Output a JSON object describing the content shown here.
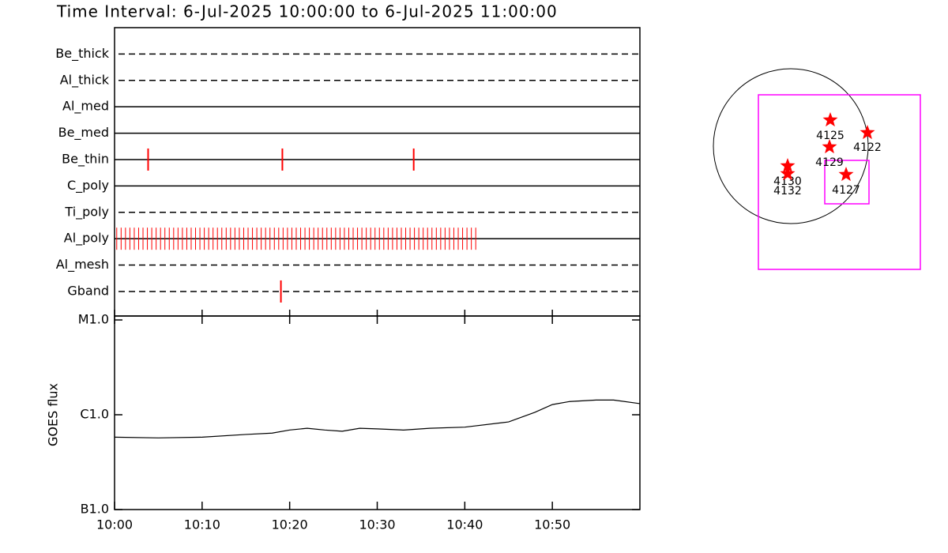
{
  "chart_data": [
    {
      "type": "timeline",
      "title": "Time Interval:  6-Jul-2025 10:00:00 to  6-Jul-2025 11:00:00",
      "categories": [
        "Be_thick",
        "Al_thick",
        "Al_med",
        "Be_med",
        "Be_thin",
        "C_poly",
        "Ti_poly",
        "Al_poly",
        "Al_mesh",
        "Gband"
      ],
      "line_styles": [
        "dashed",
        "dashed",
        "solid",
        "solid",
        "solid",
        "solid",
        "dashed",
        "solid",
        "dashed",
        "dashed"
      ],
      "color": "#ff0000",
      "events": [
        [],
        [],
        [],
        [],
        [
          "10:03:50",
          "10:19:10",
          "10:34:10"
        ],
        [],
        [],
        [
          "10:00:15",
          "10:00:45",
          "10:01:15",
          "10:01:45",
          "10:02:15",
          "10:02:45",
          "10:03:15",
          "10:03:45",
          "10:04:15",
          "10:04:45",
          "10:05:15",
          "10:05:45",
          "10:06:15",
          "10:06:45",
          "10:07:15",
          "10:07:45",
          "10:08:15",
          "10:08:45",
          "10:09:15",
          "10:09:45",
          "10:10:15",
          "10:10:45",
          "10:11:15",
          "10:11:45",
          "10:12:15",
          "10:12:45",
          "10:13:15",
          "10:13:45",
          "10:14:15",
          "10:14:45",
          "10:15:15",
          "10:15:45",
          "10:16:15",
          "10:16:45",
          "10:17:15",
          "10:17:45",
          "10:18:15",
          "10:18:45",
          "10:19:15",
          "10:19:45",
          "10:20:15",
          "10:20:45",
          "10:21:15",
          "10:21:45",
          "10:22:15",
          "10:22:45",
          "10:23:15",
          "10:23:45",
          "10:24:15",
          "10:24:45",
          "10:25:15",
          "10:25:45",
          "10:26:15",
          "10:26:45",
          "10:27:15",
          "10:27:45",
          "10:28:15",
          "10:28:45",
          "10:29:15",
          "10:29:45",
          "10:30:15",
          "10:30:45",
          "10:31:15",
          "10:31:45",
          "10:32:15",
          "10:32:45",
          "10:33:15",
          "10:33:45",
          "10:34:15",
          "10:34:45",
          "10:35:15",
          "10:35:45",
          "10:36:15",
          "10:36:45",
          "10:37:15",
          "10:37:45",
          "10:38:15",
          "10:38:45",
          "10:39:15",
          "10:39:45",
          "10:40:15",
          "10:40:45",
          "10:41:15"
        ],
        [],
        [
          "10:19:00"
        ]
      ]
    },
    {
      "type": "line",
      "ylabel": "GOES flux",
      "log_scale": true,
      "color": "#000000",
      "x": [
        "10:00",
        "10:05",
        "10:10",
        "10:15",
        "10:18",
        "10:20",
        "10:22",
        "10:24",
        "10:26",
        "10:28",
        "10:30",
        "10:33",
        "10:36",
        "10:40",
        "10:45",
        "10:48",
        "10:50",
        "10:52",
        "10:55",
        "10:57",
        "11:00"
      ],
      "values": [
        5.8e-07,
        5.7e-07,
        5.8e-07,
        6.2e-07,
        6.4e-07,
        6.9e-07,
        7.2e-07,
        6.9e-07,
        6.7e-07,
        7.2e-07,
        7.1e-07,
        6.9e-07,
        7.2e-07,
        7.4e-07,
        8.4e-07,
        1.06e-06,
        1.28e-06,
        1.38e-06,
        1.43e-06,
        1.43e-06,
        1.31e-06
      ],
      "xlim": [
        "10:00",
        "11:00"
      ],
      "xticks": [
        "10:00",
        "10:10",
        "10:20",
        "10:30",
        "10:40",
        "10:50"
      ],
      "ylim": [
        1e-07,
        1e-05
      ],
      "yticks": [
        {
          "value": 1e-07,
          "label": "B1.0"
        },
        {
          "value": 1e-06,
          "label": "C1.0"
        },
        {
          "value": 1e-05,
          "label": "M1.0"
        }
      ]
    },
    {
      "type": "map",
      "regions": [
        "4125",
        "4122",
        "4129",
        "4130",
        "4132",
        "4127"
      ],
      "color": "#ff0000",
      "box_color": "#ff00ff"
    }
  ]
}
